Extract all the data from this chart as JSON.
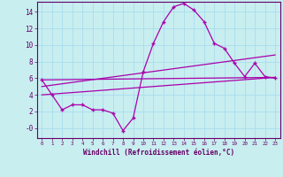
{
  "xlabel": "Windchill (Refroidissement éolien,°C)",
  "bg_color": "#c8eef0",
  "line_color": "#aa00aa",
  "grid_color": "#aaddee",
  "xlim": [
    -0.5,
    23.5
  ],
  "ylim": [
    -1.2,
    15.2
  ],
  "xticks": [
    0,
    1,
    2,
    3,
    4,
    5,
    6,
    7,
    8,
    9,
    10,
    11,
    12,
    13,
    14,
    15,
    16,
    17,
    18,
    19,
    20,
    21,
    22,
    23
  ],
  "yticks": [
    0,
    2,
    4,
    6,
    8,
    10,
    12,
    14
  ],
  "ytick_labels": [
    "-0",
    "2",
    "4",
    "6",
    "8",
    "10",
    "12",
    "14"
  ],
  "line1_x": [
    0,
    1,
    2,
    3,
    4,
    5,
    6,
    7,
    8,
    9,
    10,
    11,
    12,
    13,
    14,
    15,
    16,
    17,
    18,
    19,
    20,
    21,
    22,
    23
  ],
  "line1_y": [
    5.8,
    4.0,
    2.2,
    2.8,
    2.8,
    2.2,
    2.2,
    1.8,
    -0.3,
    1.2,
    6.8,
    10.2,
    12.8,
    14.6,
    15.0,
    14.2,
    12.8,
    10.2,
    9.6,
    7.8,
    6.2,
    7.8,
    6.2,
    6.0
  ],
  "line2_x": [
    0,
    23
  ],
  "line2_y": [
    4.0,
    6.1
  ],
  "line3_x": [
    0,
    23
  ],
  "line3_y": [
    5.0,
    8.8
  ],
  "line4_x": [
    0,
    23
  ],
  "line4_y": [
    5.8,
    6.1
  ]
}
